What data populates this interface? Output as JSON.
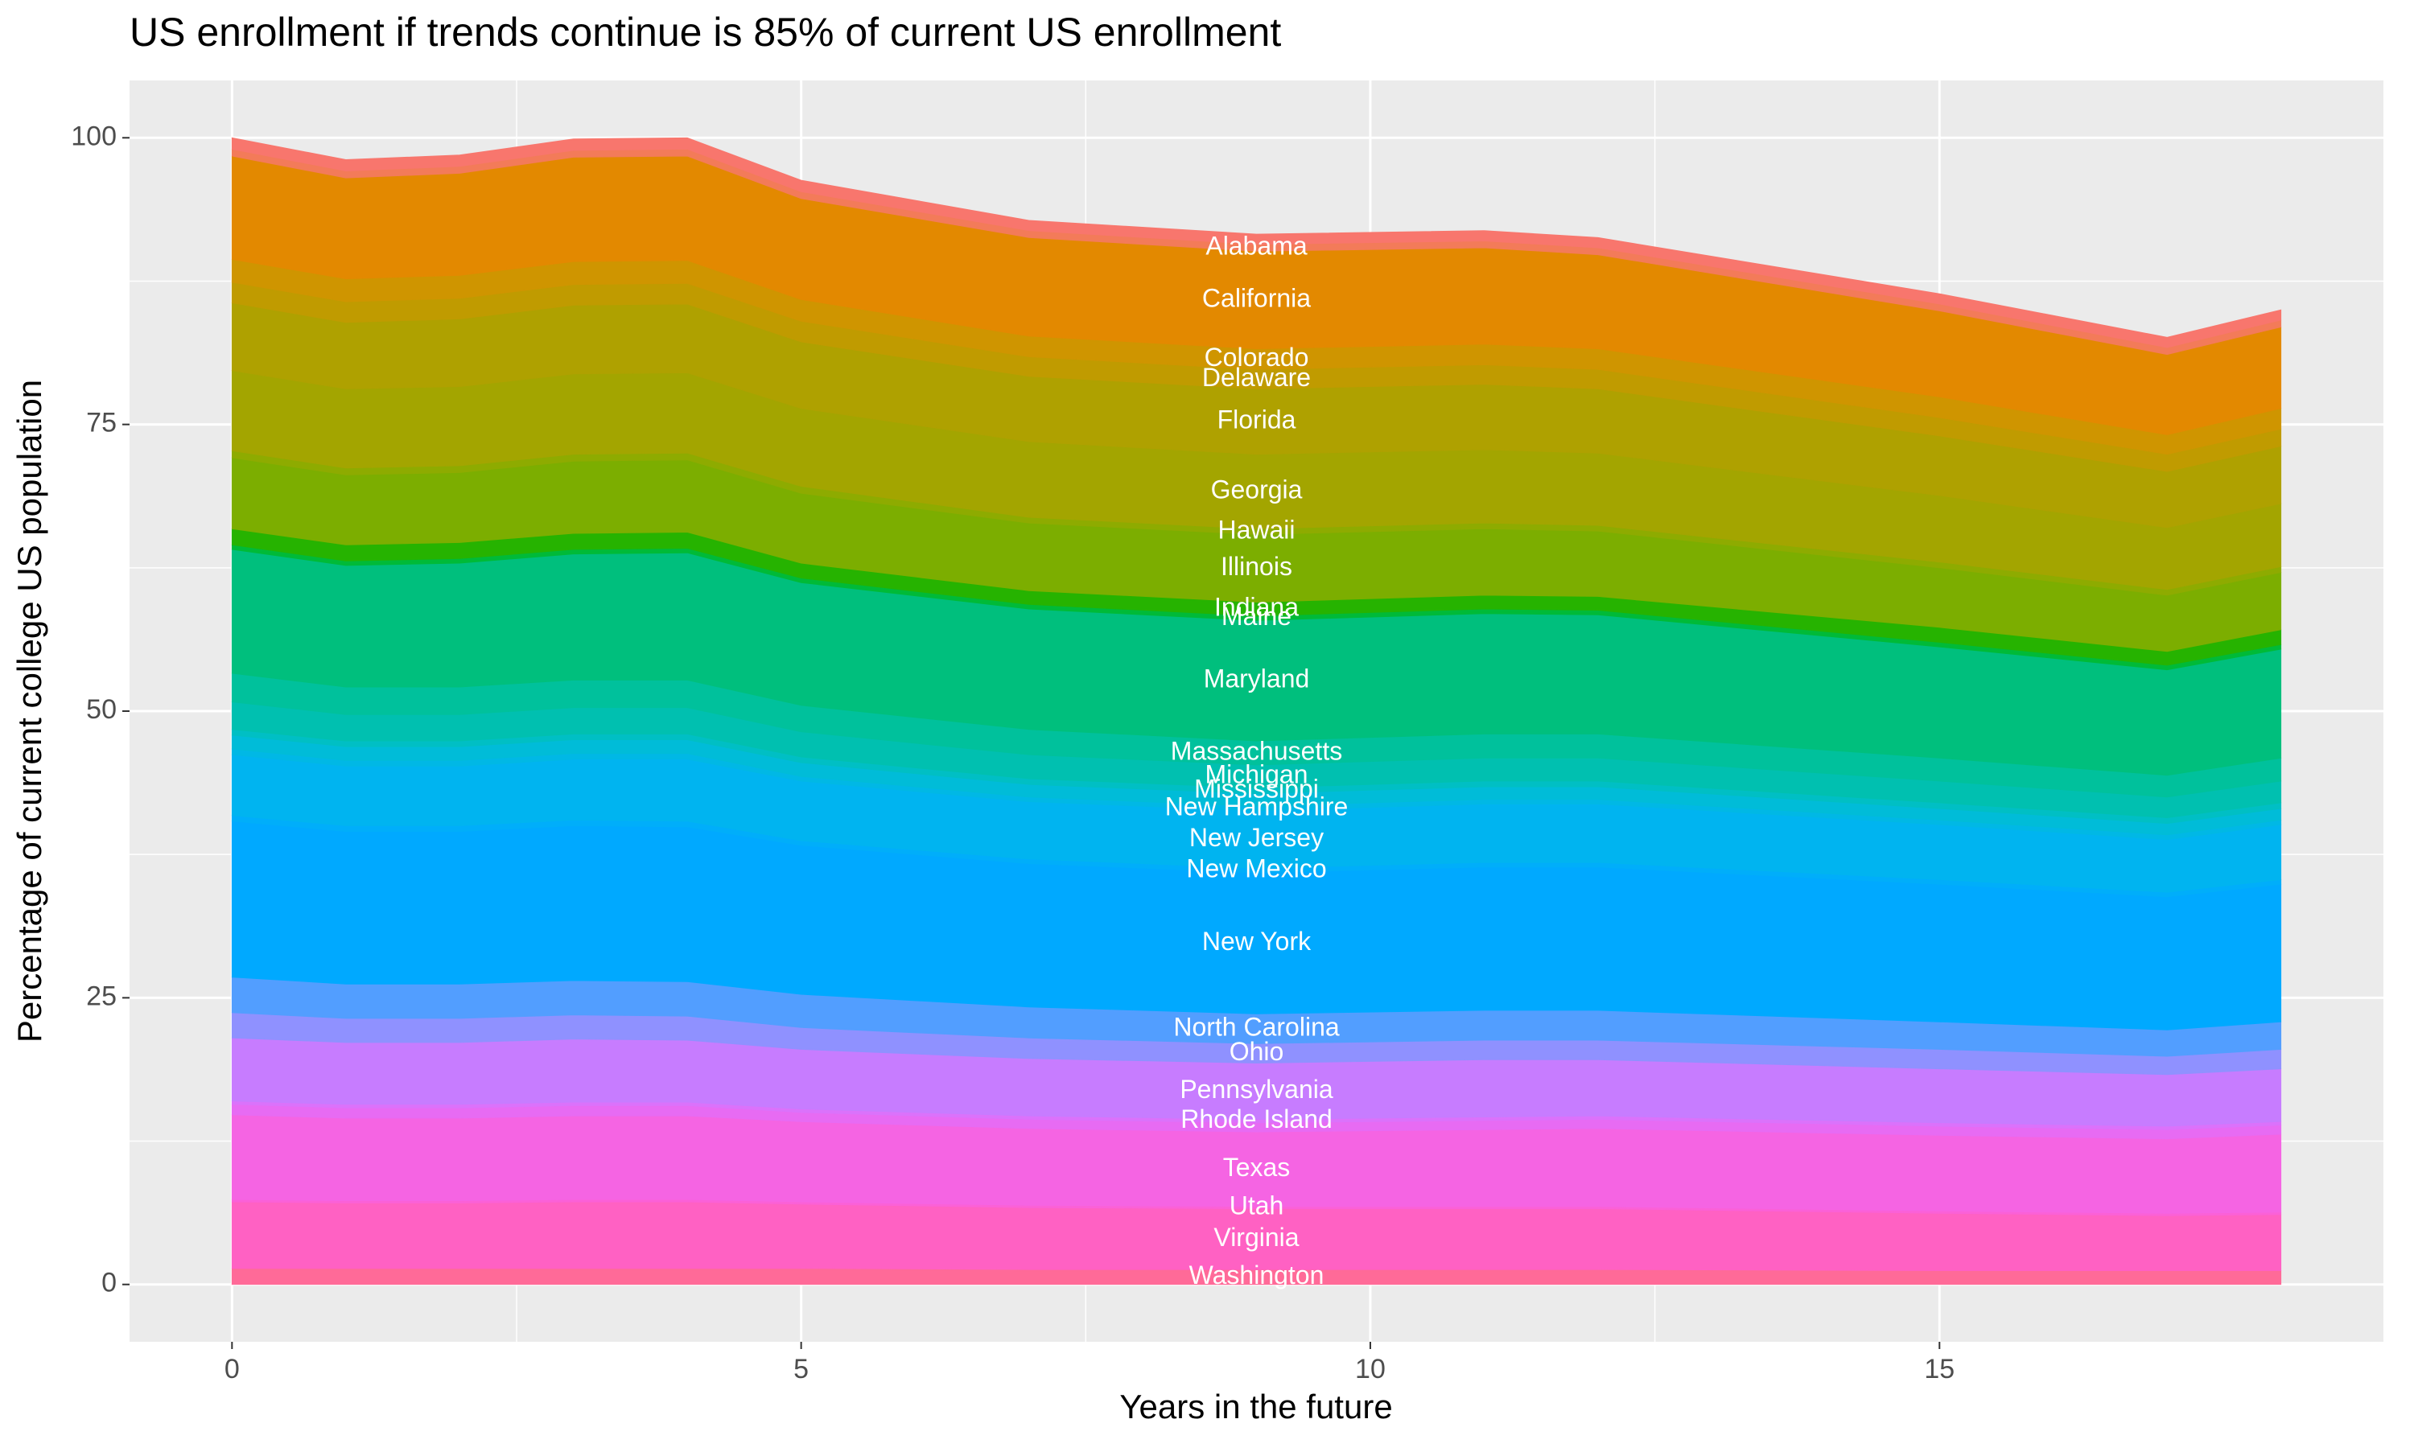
{
  "chart_data": {
    "type": "stacked_area",
    "title": "US enrollment if trends continue is 85% of current US enrollment",
    "x_label": "Years in the future",
    "y_label": "Percentage of current college US population",
    "x": [
      0,
      1,
      2,
      3,
      4,
      5,
      7,
      9,
      11,
      12,
      15,
      17,
      18
    ],
    "xlim": [
      -0.9,
      18.9
    ],
    "xticks": [
      0,
      5,
      10,
      15
    ],
    "ylim": [
      -5,
      105
    ],
    "yticks": [
      0,
      25,
      50,
      75,
      100
    ],
    "grid": true,
    "series": [
      {
        "name": "Washington",
        "color": "#FF6A98",
        "values": [
          1.4,
          1.4,
          1.4,
          1.4,
          1.4,
          1.4,
          1.3,
          1.3,
          1.3,
          1.3,
          1.2,
          1.2,
          1.2
        ]
      },
      {
        "name": "Virginia",
        "color": "#FF61C3",
        "values": [
          5.8,
          5.7,
          5.7,
          5.8,
          5.8,
          5.6,
          5.4,
          5.3,
          5.3,
          5.3,
          5.0,
          4.8,
          4.9
        ]
      },
      {
        "name": "Utah",
        "color": "#FB61D7",
        "values": [
          0.2,
          0.2,
          0.2,
          0.2,
          0.2,
          0.2,
          0.2,
          0.2,
          0.2,
          0.2,
          0.2,
          0.2,
          0.2
        ]
      },
      {
        "name": "Texas",
        "color": "#F564E3",
        "values": [
          7.4,
          7.2,
          7.2,
          7.3,
          7.3,
          7.0,
          6.7,
          6.5,
          6.7,
          6.8,
          6.6,
          6.5,
          6.8
        ]
      },
      {
        "name": null,
        "color": "#E76BF3",
        "values": [
          0.9,
          0.9,
          0.9,
          0.9,
          0.9,
          0.8,
          0.8,
          0.8,
          0.8,
          0.8,
          0.8,
          0.8,
          0.8
        ]
      },
      {
        "name": "Rhode Island",
        "color": "#DB72FB",
        "values": [
          0.3,
          0.3,
          0.3,
          0.3,
          0.3,
          0.3,
          0.3,
          0.3,
          0.3,
          0.3,
          0.3,
          0.3,
          0.3
        ]
      },
      {
        "name": "Pennsylvania",
        "color": "#C77CFF",
        "values": [
          5.5,
          5.4,
          5.4,
          5.5,
          5.4,
          5.2,
          5.0,
          4.9,
          5.0,
          4.9,
          4.7,
          4.5,
          4.6
        ]
      },
      {
        "name": "Ohio",
        "color": "#8F91FF",
        "values": [
          2.2,
          2.1,
          2.1,
          2.1,
          2.1,
          1.9,
          1.8,
          1.7,
          1.7,
          1.7,
          1.7,
          1.6,
          1.7
        ]
      },
      {
        "name": "North Carolina",
        "color": "#529EFF",
        "values": [
          3.1,
          3.0,
          3.0,
          3.0,
          3.0,
          2.9,
          2.7,
          2.6,
          2.6,
          2.6,
          2.4,
          2.3,
          2.4
        ]
      },
      {
        "name": "New York",
        "color": "#00A9FF",
        "values": [
          13.6,
          13.3,
          13.3,
          13.5,
          13.5,
          13.0,
          12.5,
          12.3,
          12.5,
          12.5,
          12.0,
          11.6,
          12.0
        ]
      },
      {
        "name": "New Mexico",
        "color": "#00AEFA",
        "values": [
          0.5,
          0.5,
          0.5,
          0.5,
          0.5,
          0.4,
          0.4,
          0.4,
          0.4,
          0.4,
          0.4,
          0.4,
          0.4
        ]
      },
      {
        "name": "New Jersey",
        "color": "#00B4F0",
        "values": [
          5.3,
          5.2,
          5.2,
          5.3,
          5.4,
          5.2,
          5.0,
          5.0,
          5.1,
          5.1,
          4.8,
          4.6,
          4.8
        ]
      },
      {
        "name": "New Hampshire",
        "color": "#00B8E5",
        "values": [
          0.5,
          0.5,
          0.5,
          0.5,
          0.5,
          0.4,
          0.4,
          0.4,
          0.4,
          0.4,
          0.4,
          0.4,
          0.4
        ]
      },
      {
        "name": null,
        "color": "#00BCD8",
        "values": [
          1.2,
          1.2,
          1.2,
          1.2,
          1.2,
          1.2,
          1.1,
          1.1,
          1.1,
          1.1,
          1.0,
          1.0,
          1.0
        ]
      },
      {
        "name": "Mississippi",
        "color": "#00BFC4",
        "values": [
          0.5,
          0.5,
          0.5,
          0.5,
          0.5,
          0.5,
          0.5,
          0.5,
          0.5,
          0.5,
          0.5,
          0.5,
          0.5
        ]
      },
      {
        "name": "Michigan",
        "color": "#00C0B0",
        "values": [
          2.4,
          2.3,
          2.3,
          2.3,
          2.3,
          2.2,
          2.1,
          2.0,
          2.0,
          2.0,
          1.9,
          1.8,
          1.9
        ]
      },
      {
        "name": "Massachusetts",
        "color": "#00C19C",
        "values": [
          2.5,
          2.4,
          2.4,
          2.4,
          2.4,
          2.3,
          2.2,
          2.1,
          2.1,
          2.1,
          2.0,
          1.9,
          2.0
        ]
      },
      {
        "name": "Maryland",
        "color": "#00BF7D",
        "values": [
          10.8,
          10.6,
          10.8,
          11.0,
          11.1,
          10.7,
          10.5,
          10.5,
          10.5,
          10.4,
          9.7,
          9.2,
          9.5
        ]
      },
      {
        "name": "Maine",
        "color": "#00BA38",
        "values": [
          0.4,
          0.4,
          0.4,
          0.4,
          0.4,
          0.4,
          0.4,
          0.4,
          0.4,
          0.4,
          0.4,
          0.4,
          0.4
        ]
      },
      {
        "name": "Indiana",
        "color": "#26B300",
        "values": [
          1.4,
          1.4,
          1.4,
          1.4,
          1.4,
          1.3,
          1.2,
          1.2,
          1.2,
          1.2,
          1.3,
          1.2,
          1.3
        ]
      },
      {
        "name": "Illinois",
        "color": "#7CAE00",
        "values": [
          6.2,
          6.1,
          6.1,
          6.3,
          6.3,
          6.1,
          5.9,
          5.9,
          5.8,
          5.7,
          5.2,
          4.9,
          5.0
        ]
      },
      {
        "name": "Hawaii",
        "color": "#8EAB00",
        "values": [
          0.6,
          0.6,
          0.6,
          0.6,
          0.6,
          0.6,
          0.5,
          0.5,
          0.5,
          0.5,
          0.5,
          0.5,
          0.5
        ]
      },
      {
        "name": "Georgia",
        "color": "#A3A500",
        "values": [
          7.0,
          6.9,
          6.9,
          7.0,
          7.0,
          6.8,
          6.6,
          6.5,
          6.4,
          6.3,
          5.8,
          5.4,
          5.5
        ]
      },
      {
        "name": "Florida",
        "color": "#AFA100",
        "values": [
          5.9,
          5.8,
          5.9,
          6.0,
          6.0,
          5.8,
          5.7,
          5.7,
          5.7,
          5.6,
          5.2,
          4.9,
          5.0
        ]
      },
      {
        "name": "Delaware",
        "color": "#C09B00",
        "values": [
          1.8,
          1.8,
          1.8,
          1.8,
          1.8,
          1.8,
          1.7,
          1.7,
          1.7,
          1.7,
          1.6,
          1.5,
          1.5
        ]
      },
      {
        "name": "Colorado",
        "color": "#CF9500",
        "values": [
          2.0,
          2.0,
          2.0,
          2.0,
          2.0,
          1.9,
          1.8,
          1.8,
          1.8,
          1.8,
          1.8,
          1.7,
          1.8
        ]
      },
      {
        "name": "California",
        "color": "#E38900",
        "values": [
          9.0,
          8.8,
          8.9,
          9.1,
          9.1,
          8.8,
          8.6,
          8.5,
          8.4,
          8.2,
          7.5,
          7.0,
          7.1
        ]
      },
      {
        "name": "Alabama",
        "color": "#F37B59",
        "values": [
          0.6,
          0.6,
          0.6,
          0.6,
          0.6,
          0.6,
          0.6,
          0.6,
          0.6,
          0.6,
          0.6,
          0.6,
          0.6
        ]
      },
      {
        "name": null,
        "color": "#F8766D",
        "values": [
          1.0,
          1.0,
          1.0,
          1.0,
          1.0,
          1.0,
          0.9,
          0.9,
          0.9,
          0.9,
          0.9,
          0.9,
          0.9
        ]
      }
    ]
  }
}
